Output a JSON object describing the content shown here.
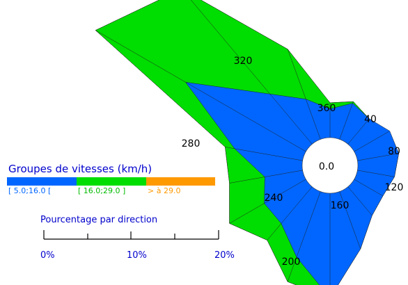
{
  "chart_data": {
    "type": "wind-rose",
    "direction_unit": "degrees",
    "directions": [
      0,
      20,
      40,
      60,
      80,
      100,
      120,
      140,
      160,
      180,
      200,
      220,
      240,
      260,
      280,
      300,
      320,
      340
    ],
    "direction_labels": [
      "360",
      "40",
      "80",
      "120",
      "160",
      "200",
      "240",
      "280",
      "320"
    ],
    "center_label": "0.0",
    "series": [
      {
        "name": "[ 5.0;16.0 [",
        "color": "#0066ff",
        "values": [
          3.3,
          4.4,
          3.8,
          4.7,
          4.8,
          4.3,
          3.8,
          4.3,
          7.0,
          12.0,
          8.0,
          5.5,
          5.5,
          4.4,
          7.9,
          15.9,
          7.5,
          4.9
        ]
      },
      {
        "name": "[ 16.0;29.0 ]",
        "color": "#00dd00",
        "values": [
          4.0,
          4.6,
          3.8,
          4.6,
          4.8,
          4.3,
          3.8,
          4.3,
          7.0,
          12.0,
          11.0,
          8.0,
          10.1,
          8.5,
          9.0,
          27.8,
          23.2,
          11.0
        ]
      },
      {
        "name": "> à 29.0",
        "color": "#ff9900",
        "values": [
          4.0,
          4.6,
          3.8,
          4.6,
          4.8,
          4.3,
          3.8,
          4.3,
          7.0,
          12.0,
          11.0,
          8.0,
          10.1,
          8.5,
          9.0,
          27.8,
          23.2,
          11.0
        ]
      }
    ],
    "legend": {
      "title": "Groupes de vitesses (km/h)"
    },
    "scale": {
      "title": "Pourcentage par direction",
      "ticks": [
        "0%",
        "10%",
        "20%"
      ],
      "max_percent": 20
    }
  }
}
